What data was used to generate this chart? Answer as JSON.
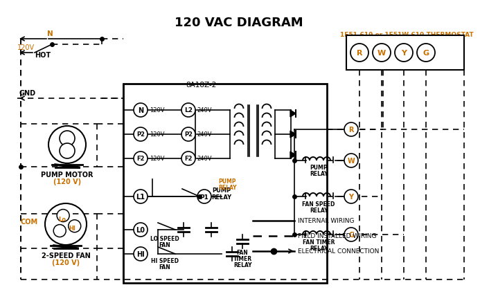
{
  "title": "120 VAC DIAGRAM",
  "bg": "#ffffff",
  "black": "#000000",
  "orange": "#c87000",
  "thermostat_label": "1F51-619 or 1F51W-619 THERMOSTAT",
  "controller_label": "8A18Z-2",
  "term_labels": [
    "R",
    "W",
    "Y",
    "G"
  ],
  "pump_motor_label1": "PUMP MOTOR",
  "pump_motor_label2": "(120 V)",
  "fan_label1": "2-SPEED FAN",
  "fan_label2": "(120 V)",
  "legend": [
    {
      "label": "INTERNAL WIRING",
      "style": "solid"
    },
    {
      "label": "FIELD INSTALLED WIRING",
      "style": "dashed"
    },
    {
      "label": "ELECTRICAL CONNECTION",
      "style": "arrow"
    }
  ]
}
